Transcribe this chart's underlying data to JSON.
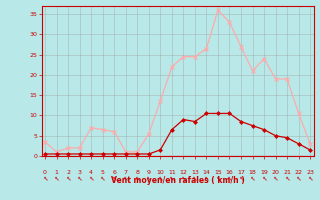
{
  "x": [
    0,
    1,
    2,
    3,
    4,
    5,
    6,
    7,
    8,
    9,
    10,
    11,
    12,
    13,
    14,
    15,
    16,
    17,
    18,
    19,
    20,
    21,
    22,
    23
  ],
  "y_rafales": [
    3.5,
    1.0,
    2.0,
    2.0,
    7.0,
    6.5,
    6.0,
    1.0,
    1.0,
    5.5,
    13.5,
    22.0,
    24.5,
    24.5,
    26.5,
    36.0,
    33.0,
    27.0,
    21.0,
    24.0,
    19.0,
    19.0,
    10.5,
    3.0
  ],
  "y_moyen": [
    0.5,
    0.5,
    0.5,
    0.5,
    0.5,
    0.5,
    0.5,
    0.5,
    0.5,
    0.5,
    1.5,
    6.5,
    9.0,
    8.5,
    10.5,
    10.5,
    10.5,
    8.5,
    7.5,
    6.5,
    5.0,
    4.5,
    3.0,
    1.5
  ],
  "color_rafales": "#ffaaaa",
  "color_moyen": "#cc0000",
  "bg_color": "#b8e8e8",
  "grid_color": "#999999",
  "xlabel": "Vent moyen/en rafales ( km/h )",
  "yticks": [
    0,
    5,
    10,
    15,
    20,
    25,
    30,
    35
  ],
  "xticks": [
    0,
    1,
    2,
    3,
    4,
    5,
    6,
    7,
    8,
    9,
    10,
    11,
    12,
    13,
    14,
    15,
    16,
    17,
    18,
    19,
    20,
    21,
    22,
    23
  ],
  "ylim": [
    0,
    37
  ],
  "xlim": [
    -0.3,
    23.3
  ],
  "tick_color": "#cc0000",
  "label_color": "#cc0000",
  "spine_color": "#cc0000",
  "arrow_char": "←"
}
